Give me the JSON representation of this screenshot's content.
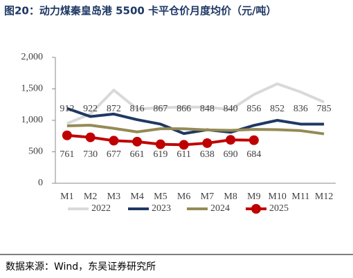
{
  "title": "图20：动力煤秦皇岛港 5500 卡平仓价月度均价（元/吨）",
  "source": "数据来源：Wind，东吴证券研究所",
  "chart_data": {
    "type": "line",
    "categories": [
      "M1",
      "M2",
      "M3",
      "M4",
      "M5",
      "M6",
      "M7",
      "M8",
      "M9",
      "M10",
      "M11",
      "M12"
    ],
    "ylim": [
      0,
      2000
    ],
    "yticks": [
      0,
      500,
      {
        "value": 1000,
        "label": "1,000"
      },
      {
        "value": 1500,
        "label": "1,500"
      },
      {
        "value": 2000,
        "label": "2,000"
      }
    ],
    "grid": false,
    "legend": "bottom",
    "series": [
      {
        "name": "2022",
        "color": "#d9d9d9",
        "values": [
          950,
          1100,
          1480,
          1180,
          1200,
          1210,
          1210,
          1170,
          1410,
          1580,
          1450,
          1290
        ]
      },
      {
        "name": "2023",
        "color": "#1f3864",
        "values": [
          1190,
          1060,
          1100,
          1010,
          940,
          790,
          850,
          810,
          920,
          1000,
          940,
          940
        ]
      },
      {
        "name": "2024",
        "color": "#948a54",
        "labels": "above",
        "values": [
          912,
          922,
          872,
          816,
          867,
          866,
          848,
          840,
          856,
          852,
          836,
          785
        ]
      },
      {
        "name": "2025",
        "color": "#c00000",
        "labels": "below",
        "markers": true,
        "values": [
          761,
          730,
          677,
          661,
          619,
          611,
          638,
          690,
          684,
          null,
          null,
          null
        ]
      }
    ]
  }
}
